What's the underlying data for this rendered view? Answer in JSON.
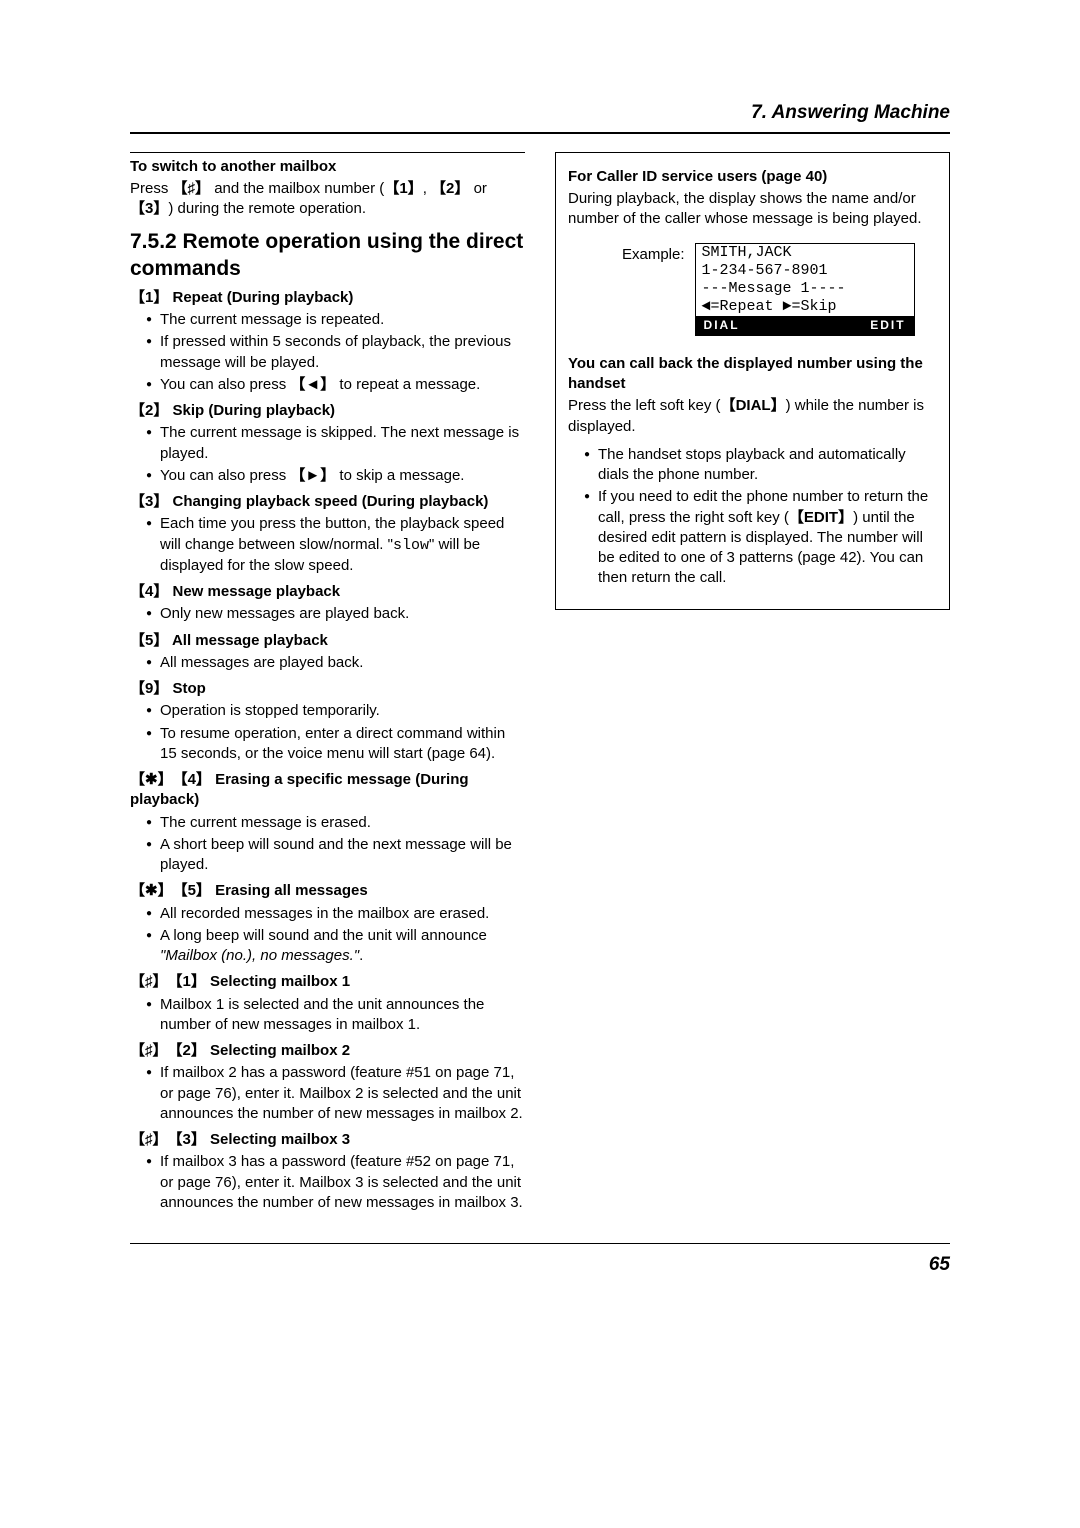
{
  "chapter": "7. Answering Machine",
  "page_number": "65",
  "left": {
    "switch_heading": "To switch to another mailbox",
    "switch_body_pre": "Press ",
    "switch_key1": "♯",
    "switch_body_mid": " and the mailbox number (",
    "switch_key_opts": [
      "1",
      "2",
      "3"
    ],
    "switch_body_end": ") during the remote operation.",
    "section_title": "7.5.2 Remote operation using the direct commands",
    "cmds": [
      {
        "key": "1",
        "title": "Repeat (During playback)",
        "items": [
          "The current message is repeated.",
          "If pressed within 5 seconds of playback, the previous message will be played.",
          {
            "pre": "You can also press ",
            "key": "◄",
            "post": " to repeat a message."
          }
        ]
      },
      {
        "key": "2",
        "title": "Skip (During playback)",
        "items": [
          "The current message is skipped. The next message is played.",
          {
            "pre": "You can also press ",
            "key": "►",
            "post": " to skip a message."
          }
        ]
      },
      {
        "key": "3",
        "title": "Changing playback speed (During playback)",
        "items": [
          {
            "pre": "Each time you press the button, the playback speed will change between slow/normal. \"",
            "mono": "slow",
            "post": "\" will be displayed for the slow speed."
          }
        ]
      },
      {
        "key": "4",
        "title": "New message playback",
        "items": [
          "Only new messages are played back."
        ]
      },
      {
        "key": "5",
        "title": "All message playback",
        "items": [
          "All messages are played back."
        ]
      },
      {
        "key": "9",
        "title": "Stop",
        "items": [
          "Operation is stopped temporarily.",
          "To resume operation, enter a direct command within 15 seconds, or the voice menu will start (page 64)."
        ]
      },
      {
        "keys": [
          "✱",
          "4"
        ],
        "title": "Erasing a specific message (During playback)",
        "items": [
          "The current message is erased.",
          "A short beep will sound and the next message will be played."
        ]
      },
      {
        "keys": [
          "✱",
          "5"
        ],
        "title": "Erasing all messages",
        "items": [
          "All recorded messages in the mailbox are erased.",
          {
            "pre": "A long beep will sound and the unit will announce ",
            "ital": "\"Mailbox (no.), no messages.\"",
            "post": "."
          }
        ]
      },
      {
        "keys": [
          "♯",
          "1"
        ],
        "title": "Selecting mailbox 1",
        "items": [
          "Mailbox 1 is selected and the unit announces the number of new messages in mailbox 1."
        ]
      },
      {
        "keys": [
          "♯",
          "2"
        ],
        "title": "Selecting mailbox 2",
        "items": [
          "If mailbox 2 has a password (feature #51 on page 71, or page 76), enter it. Mailbox 2 is selected and the unit announces the number of new messages in mailbox 2."
        ]
      },
      {
        "keys": [
          "♯",
          "3"
        ],
        "title": "Selecting mailbox 3",
        "items": [
          "If mailbox 3 has a password (feature #52 on page 71, or page 76), enter it. Mailbox 3 is selected and the unit announces the number of new messages in mailbox 3."
        ]
      }
    ]
  },
  "right": {
    "cid_heading": "For Caller ID service users (page 40)",
    "cid_body": "During playback, the display shows the name and/or number of the caller whose message is being played.",
    "example_label": "Example:",
    "lcd": {
      "line1": "SMITH,JACK",
      "line2": "1-234-567-8901",
      "line3": "---Message 1----",
      "line4": "◄=Repeat  ►=Skip",
      "soft_left": "DIAL",
      "soft_right": "EDIT"
    },
    "callback_heading": "You can call back the displayed number using the handset",
    "callback_body_pre": "Press the left soft key (",
    "callback_key": "DIAL",
    "callback_body_post": ") while the number is displayed.",
    "callback_items": [
      "The handset stops playback and automatically dials the phone number.",
      {
        "pre": "If you need to edit the phone number to return the call, press the right soft key (",
        "key": "EDIT",
        "post": ") until the desired edit pattern is displayed. The number will be edited to one of 3 patterns (page 42). You can then return the call."
      }
    ]
  }
}
